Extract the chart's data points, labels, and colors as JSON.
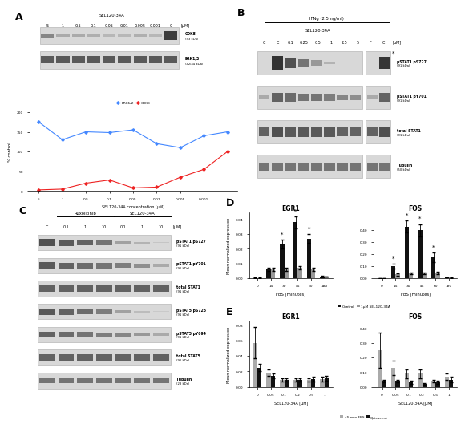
{
  "panel_A": {
    "title": "SEL120-34A",
    "x_labels": [
      "5",
      "1",
      "0.5",
      "0.1",
      "0.05",
      "0.01",
      "0.005",
      "0.001",
      "0"
    ],
    "erk_values": [
      175,
      130,
      150,
      148,
      155,
      120,
      110,
      140,
      150
    ],
    "cdk8_values": [
      3,
      5,
      20,
      28,
      8,
      10,
      35,
      55,
      100
    ],
    "xlabel": "SEL120-34A concentration [μM]",
    "ylabel": "% control",
    "ylim": [
      0,
      200
    ],
    "yticks": [
      0,
      50,
      100,
      150,
      200
    ],
    "erk_color": "#4488ff",
    "cdk8_color": "#ee2222"
  },
  "panel_B": {
    "title1": "IFNg (2.5 ng/ml)",
    "title2": "SEL120-34A",
    "col_labels": [
      "C",
      "C",
      "0.1",
      "0.25",
      "0.5",
      "1",
      "2.5",
      "5",
      "F",
      "C"
    ],
    "unit": "[μM]",
    "blot_labels": [
      "pSTAT1 pS727\n(91 kDa)",
      "pSTAT1 pY701\n(91 kDa)",
      "total STAT1\n(91 kDa)",
      "Tubulin\n(50 kDa)"
    ],
    "band_intensities": [
      [
        0.02,
        0.95,
        0.75,
        0.55,
        0.35,
        0.2,
        0.1,
        0.05,
        0.02,
        0.9
      ],
      [
        0.25,
        0.65,
        0.6,
        0.55,
        0.55,
        0.5,
        0.45,
        0.4,
        0.25,
        0.65
      ],
      [
        0.65,
        0.75,
        0.7,
        0.7,
        0.7,
        0.7,
        0.65,
        0.65,
        0.65,
        0.75
      ],
      [
        0.55,
        0.55,
        0.55,
        0.55,
        0.55,
        0.55,
        0.55,
        0.55,
        0.55,
        0.55
      ]
    ]
  },
  "panel_C": {
    "col_labels": [
      "C",
      "0.1",
      "1",
      "10",
      "0.1",
      "1",
      "10"
    ],
    "unit": "[μM]",
    "group1": "Ruxolitinib",
    "group2": "SEL120-34A",
    "blot_labels": [
      "pSTAT1 pS727\n(91 kDa)",
      "pSTAT1 pY701\n(91 kDa)",
      "total STAT1\n(91 kDa)",
      "pSTAT5 pS726\n(91 kDa)",
      "pSTAT5 pY694\n(91 kDa)",
      "total STAT5\n(91 kDa)",
      "Tubulin\n(28 kDa)"
    ],
    "band_intensities": [
      [
        0.75,
        0.7,
        0.65,
        0.55,
        0.3,
        0.2,
        0.1
      ],
      [
        0.7,
        0.65,
        0.6,
        0.55,
        0.5,
        0.4,
        0.25
      ],
      [
        0.65,
        0.65,
        0.65,
        0.65,
        0.65,
        0.65,
        0.65
      ],
      [
        0.7,
        0.65,
        0.6,
        0.5,
        0.3,
        0.15,
        0.08
      ],
      [
        0.65,
        0.6,
        0.55,
        0.5,
        0.45,
        0.35,
        0.25
      ],
      [
        0.65,
        0.65,
        0.65,
        0.65,
        0.65,
        0.65,
        0.65
      ],
      [
        0.55,
        0.55,
        0.55,
        0.55,
        0.55,
        0.55,
        0.55
      ]
    ]
  },
  "panel_D": {
    "EGR1": {
      "title": "EGR1",
      "xlabel": "FBS (minutes)",
      "ylabel": "Mean normalized expression",
      "x_cats": [
        "0",
        "15",
        "30",
        "45",
        "60",
        "180"
      ],
      "control": [
        0.0002,
        0.006,
        0.023,
        0.038,
        0.027,
        0.001
      ],
      "treatment": [
        0.0002,
        0.006,
        0.006,
        0.007,
        0.006,
        0.001
      ],
      "control_err": [
        0.0001,
        0.001,
        0.003,
        0.004,
        0.003,
        0.0005
      ],
      "treatment_err": [
        0.0001,
        0.001,
        0.001,
        0.001,
        0.001,
        0.0002
      ],
      "ylim": [
        0,
        0.045
      ],
      "yticks": [
        0.0,
        0.01,
        0.02,
        0.03,
        0.04
      ],
      "star_idx": [
        2,
        3,
        4
      ]
    },
    "FOS": {
      "title": "FOS",
      "xlabel": "FBS (minutes)",
      "ylabel": "",
      "x_cats": [
        "0",
        "15",
        "30",
        "45",
        "60",
        "180"
      ],
      "control": [
        0.001,
        0.1,
        0.43,
        0.4,
        0.17,
        0.005
      ],
      "treatment": [
        0.001,
        0.03,
        0.04,
        0.04,
        0.04,
        0.003
      ],
      "control_err": [
        0.0005,
        0.02,
        0.05,
        0.05,
        0.04,
        0.002
      ],
      "treatment_err": [
        0.0005,
        0.01,
        0.008,
        0.008,
        0.01,
        0.001
      ],
      "ylim": [
        0,
        0.55
      ],
      "yticks": [
        0.0,
        0.1,
        0.2,
        0.3,
        0.4
      ],
      "star_idx": [
        1,
        2,
        3,
        4
      ]
    },
    "legend": {
      "control_label": "Control",
      "treatment_label": "1μM SEL120-34A"
    },
    "control_color": "#111111",
    "treatment_color": "#999999"
  },
  "panel_E": {
    "EGR1": {
      "title": "EGR1",
      "xlabel": "SEL120-34A [μM]",
      "ylabel": "Mean normalized expression",
      "x_cats": [
        "0",
        "0.05",
        "0.1",
        "0.2",
        "0.5",
        "1"
      ],
      "fbs45": [
        0.057,
        0.018,
        0.009,
        0.009,
        0.009,
        0.01
      ],
      "quiescent": [
        0.025,
        0.014,
        0.009,
        0.009,
        0.01,
        0.011
      ],
      "fbs45_err": [
        0.02,
        0.004,
        0.002,
        0.002,
        0.002,
        0.003
      ],
      "quiescent_err": [
        0.005,
        0.003,
        0.002,
        0.002,
        0.003,
        0.003
      ],
      "ylim": [
        0,
        0.085
      ],
      "yticks": [
        0.0,
        0.02,
        0.04,
        0.06,
        0.08
      ]
    },
    "FOS": {
      "title": "FOS",
      "xlabel": "SEL120-34A [μM]",
      "ylabel": "",
      "x_cats": [
        "0",
        "0.05",
        "0.1",
        "0.2",
        "0.5",
        "1"
      ],
      "fbs45": [
        0.25,
        0.13,
        0.09,
        0.09,
        0.04,
        0.07
      ],
      "quiescent": [
        0.04,
        0.04,
        0.03,
        0.02,
        0.03,
        0.05
      ],
      "fbs45_err": [
        0.12,
        0.05,
        0.03,
        0.03,
        0.01,
        0.02
      ],
      "quiescent_err": [
        0.01,
        0.01,
        0.01,
        0.005,
        0.01,
        0.02
      ],
      "ylim": [
        0,
        0.45
      ],
      "yticks": [
        0.0,
        0.1,
        0.2,
        0.3,
        0.4
      ]
    },
    "legend": {
      "fbs45_label": "45 min FBS",
      "quiescent_label": "Quiescent"
    },
    "fbs45_color": "#aaaaaa",
    "quiescent_color": "#111111"
  },
  "bg_color": "#ffffff",
  "blot_bg": "#d8d8d8",
  "band_dark": "#333333",
  "band_light": "#888888"
}
